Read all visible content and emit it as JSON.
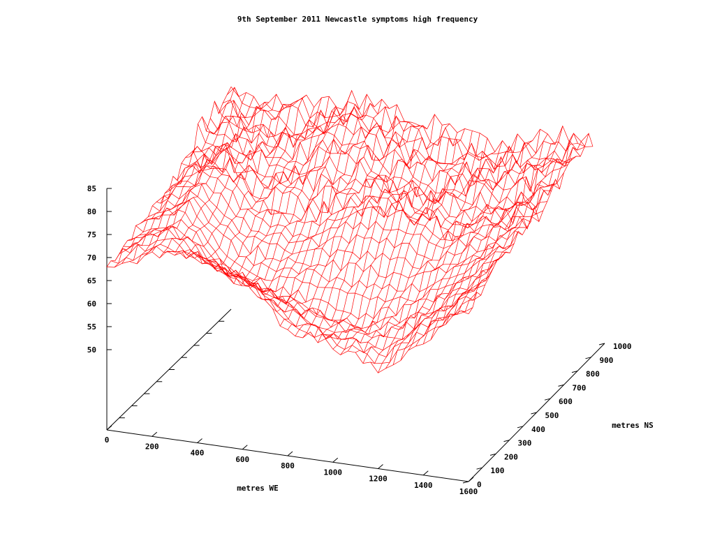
{
  "chart_data": {
    "type": "surface",
    "title": "9th September 2011 Newcastle symptoms high frequency",
    "xlabel": "metres WE",
    "ylabel": "metres NS",
    "zlabel": "",
    "xlim": [
      0,
      1600
    ],
    "ylim": [
      0,
      1000
    ],
    "zlim": [
      50,
      85
    ],
    "x_ticks": [
      "0",
      "200",
      "400",
      "600",
      "800",
      "1000",
      "1200",
      "1400",
      "1600"
    ],
    "y_ticks": [
      "0",
      "100",
      "200",
      "300",
      "400",
      "500",
      "600",
      "700",
      "800",
      "900",
      "1000"
    ],
    "z_ticks": [
      "50",
      "55",
      "60",
      "65",
      "70",
      "75",
      "80",
      "85"
    ],
    "series": [
      {
        "color": "#ff0000",
        "points": [
          {
            "x": 0,
            "y": 0,
            "z": 68
          },
          {
            "x": 0,
            "y": 250,
            "z": 70
          },
          {
            "x": 0,
            "y": 500,
            "z": 72
          },
          {
            "x": 0,
            "y": 750,
            "z": 78
          },
          {
            "x": 0,
            "y": 1000,
            "z": 80
          },
          {
            "x": 200,
            "y": 0,
            "z": 72
          },
          {
            "x": 200,
            "y": 250,
            "z": 74
          },
          {
            "x": 200,
            "y": 500,
            "z": 78
          },
          {
            "x": 200,
            "y": 750,
            "z": 76
          },
          {
            "x": 200,
            "y": 1000,
            "z": 79
          },
          {
            "x": 400,
            "y": 0,
            "z": 74
          },
          {
            "x": 400,
            "y": 250,
            "z": 62
          },
          {
            "x": 400,
            "y": 500,
            "z": 70
          },
          {
            "x": 400,
            "y": 750,
            "z": 75
          },
          {
            "x": 400,
            "y": 1000,
            "z": 80
          },
          {
            "x": 600,
            "y": 0,
            "z": 70
          },
          {
            "x": 600,
            "y": 250,
            "z": 60
          },
          {
            "x": 600,
            "y": 500,
            "z": 68
          },
          {
            "x": 600,
            "y": 750,
            "z": 79
          },
          {
            "x": 600,
            "y": 1000,
            "z": 82
          },
          {
            "x": 800,
            "y": 0,
            "z": 60
          },
          {
            "x": 800,
            "y": 250,
            "z": 58
          },
          {
            "x": 800,
            "y": 500,
            "z": 72
          },
          {
            "x": 800,
            "y": 750,
            "z": 76
          },
          {
            "x": 800,
            "y": 1000,
            "z": 80
          },
          {
            "x": 1000,
            "y": 0,
            "z": 58
          },
          {
            "x": 1000,
            "y": 250,
            "z": 56
          },
          {
            "x": 1000,
            "y": 500,
            "z": 74
          },
          {
            "x": 1000,
            "y": 750,
            "z": 72
          },
          {
            "x": 1000,
            "y": 1000,
            "z": 78
          },
          {
            "x": 1200,
            "y": 0,
            "z": 54
          },
          {
            "x": 1200,
            "y": 250,
            "z": 60
          },
          {
            "x": 1200,
            "y": 500,
            "z": 70
          },
          {
            "x": 1200,
            "y": 750,
            "z": 74
          },
          {
            "x": 1200,
            "y": 1000,
            "z": 76
          },
          {
            "x": 1400,
            "y": 0,
            "z": 62
          },
          {
            "x": 1400,
            "y": 250,
            "z": 66
          },
          {
            "x": 1400,
            "y": 500,
            "z": 72
          },
          {
            "x": 1400,
            "y": 750,
            "z": 74
          },
          {
            "x": 1400,
            "y": 1000,
            "z": 80
          },
          {
            "x": 1600,
            "y": 0,
            "z": 70
          },
          {
            "x": 1600,
            "y": 250,
            "z": 74
          },
          {
            "x": 1600,
            "y": 500,
            "z": 76
          },
          {
            "x": 1600,
            "y": 750,
            "z": 78
          },
          {
            "x": 1600,
            "y": 1000,
            "z": 81
          }
        ]
      }
    ]
  }
}
